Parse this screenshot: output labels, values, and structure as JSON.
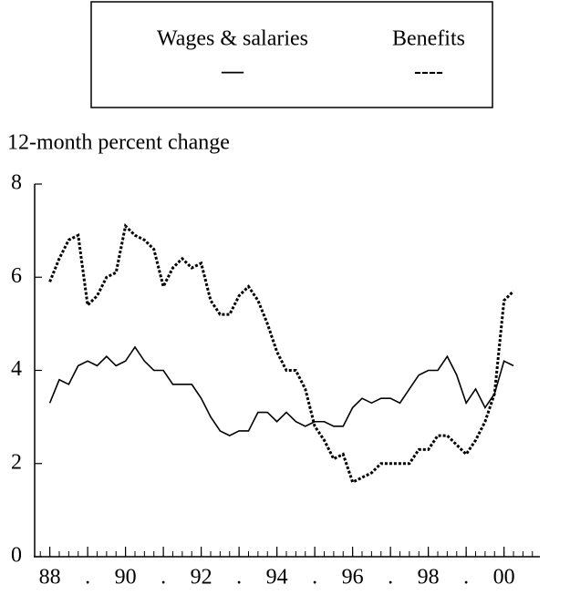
{
  "chart_data": {
    "type": "line",
    "y_label": "12-month percent change",
    "x": [
      1988,
      1988.25,
      1988.5,
      1988.75,
      1989,
      1989.25,
      1989.5,
      1989.75,
      1990,
      1990.25,
      1990.5,
      1990.75,
      1991,
      1991.25,
      1991.5,
      1991.75,
      1992,
      1992.25,
      1992.5,
      1992.75,
      1993,
      1993.25,
      1993.5,
      1993.75,
      1994,
      1994.25,
      1994.5,
      1994.75,
      1995,
      1995.25,
      1995.5,
      1995.75,
      1996,
      1996.25,
      1996.5,
      1996.75,
      1997,
      1997.25,
      1997.5,
      1997.75,
      1998,
      1998.25,
      1998.5,
      1998.75,
      1999,
      1999.25,
      1999.5,
      1999.75,
      2000,
      2000.25
    ],
    "series": [
      {
        "name": "Wages & salaries",
        "legend_sample": "—",
        "color": "#000000",
        "dash": "solid",
        "values": [
          3.3,
          3.8,
          3.7,
          4.1,
          4.2,
          4.1,
          4.3,
          4.1,
          4.2,
          4.5,
          4.2,
          4.0,
          4.0,
          3.7,
          3.7,
          3.7,
          3.4,
          3.0,
          2.7,
          2.6,
          2.7,
          2.7,
          3.1,
          3.1,
          2.9,
          3.1,
          2.9,
          2.8,
          2.9,
          2.9,
          2.8,
          2.8,
          3.2,
          3.4,
          3.3,
          3.4,
          3.4,
          3.3,
          3.6,
          3.9,
          4.0,
          4.0,
          4.3,
          3.9,
          3.3,
          3.6,
          3.2,
          3.5,
          4.2,
          4.1
        ]
      },
      {
        "name": "Benefits",
        "legend_sample": "----",
        "color": "#000000",
        "dash": "dotted",
        "values": [
          5.9,
          6.4,
          6.8,
          6.9,
          5.4,
          5.6,
          6.0,
          6.1,
          7.1,
          6.9,
          6.8,
          6.6,
          5.8,
          6.2,
          6.4,
          6.2,
          6.3,
          5.5,
          5.2,
          5.2,
          5.6,
          5.8,
          5.5,
          5.0,
          4.4,
          4.0,
          4.0,
          3.6,
          2.8,
          2.5,
          2.1,
          2.2,
          1.6,
          1.7,
          1.8,
          2.0,
          2.0,
          2.0,
          2.0,
          2.3,
          2.3,
          2.6,
          2.6,
          2.4,
          2.2,
          2.5,
          2.9,
          3.5,
          5.5,
          5.7
        ]
      }
    ],
    "xlim": [
      1987.6,
      2000.9
    ],
    "xticks": [
      {
        "value": 1988,
        "label": "88"
      },
      {
        "value": 1989,
        "label": "."
      },
      {
        "value": 1990,
        "label": "90"
      },
      {
        "value": 1991,
        "label": "."
      },
      {
        "value": 1992,
        "label": "92"
      },
      {
        "value": 1993,
        "label": "."
      },
      {
        "value": 1994,
        "label": "94"
      },
      {
        "value": 1995,
        "label": "."
      },
      {
        "value": 1996,
        "label": "96"
      },
      {
        "value": 1997,
        "label": "."
      },
      {
        "value": 1998,
        "label": "98"
      },
      {
        "value": 1999,
        "label": "."
      },
      {
        "value": 2000,
        "label": "00"
      }
    ],
    "ylim": [
      0,
      8
    ],
    "yticks": [
      0,
      2,
      4,
      6,
      8
    ],
    "grid": false
  }
}
